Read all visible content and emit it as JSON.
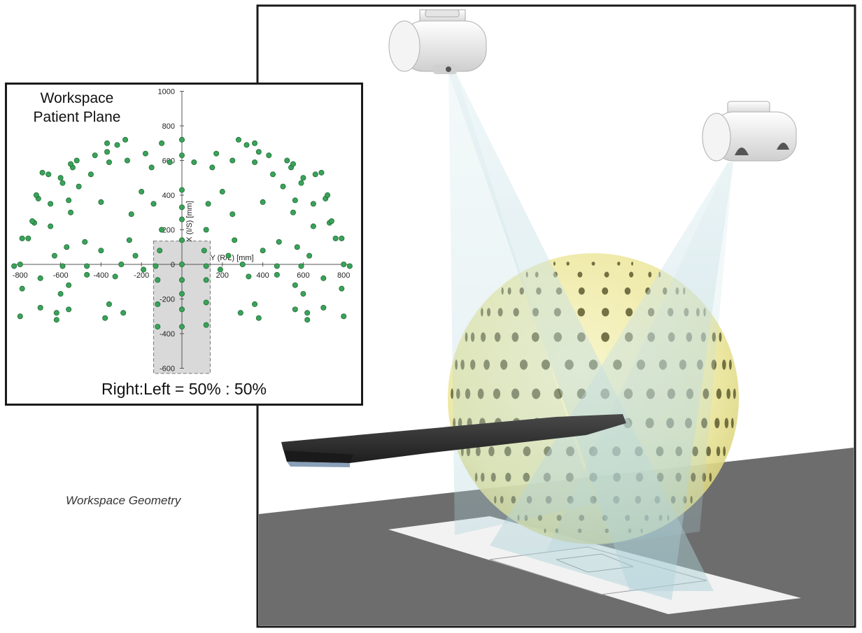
{
  "caption": "Workspace Geometry",
  "inset": {
    "title_line1": "Workspace",
    "title_line2": "Patient Plane",
    "ratio_text": "Right:Left = 50% : 50%"
  },
  "colors": {
    "point_fill": "#3aa35a",
    "point_stroke": "#1f6b34",
    "shaded_region": "#d9d9d9",
    "sphere_fill": "#f3f0b0",
    "floor": "#6b6b6b",
    "couch": "#2f2f2f",
    "beam": "#cfe6ea"
  },
  "chart_data": {
    "type": "scatter",
    "xlabel": "Y (R/L) [mm]",
    "ylabel": "X (I/S) [mm]",
    "xlim": [
      -800,
      800
    ],
    "ylim": [
      -600,
      1000
    ],
    "x_ticks": [
      -800,
      -600,
      -400,
      -200,
      0,
      200,
      400,
      600,
      800
    ],
    "y_ticks": [
      -600,
      -400,
      -200,
      0,
      200,
      400,
      600,
      800,
      1000
    ],
    "shaded_region": {
      "x": [
        -140,
        140
      ],
      "y": [
        -630,
        135
      ]
    },
    "points": [
      [
        0,
        720
      ],
      [
        0,
        630
      ],
      [
        0,
        430
      ],
      [
        0,
        330
      ],
      [
        0,
        260
      ],
      [
        0,
        140
      ],
      [
        0,
        0
      ],
      [
        0,
        -90
      ],
      [
        0,
        -170
      ],
      [
        0,
        -260
      ],
      [
        0,
        -360
      ],
      [
        -140,
        350
      ],
      [
        -130,
        -10
      ],
      [
        -120,
        -90
      ],
      [
        -120,
        -230
      ],
      [
        -120,
        -360
      ],
      [
        -100,
        700
      ],
      [
        -100,
        200
      ],
      [
        -110,
        80
      ],
      [
        130,
        350
      ],
      [
        120,
        -10
      ],
      [
        120,
        -90
      ],
      [
        120,
        -220
      ],
      [
        120,
        -350
      ],
      [
        120,
        200
      ],
      [
        110,
        80
      ],
      [
        -260,
        140
      ],
      [
        -250,
        290
      ],
      [
        -270,
        600
      ],
      [
        -280,
        720
      ],
      [
        -320,
        690
      ],
      [
        -360,
        590
      ],
      [
        -370,
        700
      ],
      [
        -290,
        -280
      ],
      [
        -300,
        0
      ],
      [
        -330,
        -70
      ],
      [
        -360,
        -230
      ],
      [
        -380,
        -310
      ],
      [
        -370,
        650
      ],
      [
        -400,
        360
      ],
      [
        -400,
        80
      ],
      [
        -430,
        630
      ],
      [
        -450,
        520
      ],
      [
        -470,
        -10
      ],
      [
        -470,
        -60
      ],
      [
        -480,
        130
      ],
      [
        -510,
        450
      ],
      [
        -520,
        600
      ],
      [
        -540,
        560
      ],
      [
        -550,
        580
      ],
      [
        -550,
        300
      ],
      [
        -560,
        -120
      ],
      [
        -560,
        -260
      ],
      [
        -560,
        370
      ],
      [
        -570,
        100
      ],
      [
        -590,
        470
      ],
      [
        -590,
        -10
      ],
      [
        -600,
        500
      ],
      [
        -600,
        -170
      ],
      [
        -620,
        -280
      ],
      [
        -620,
        -320
      ],
      [
        -630,
        50
      ],
      [
        -650,
        220
      ],
      [
        -650,
        350
      ],
      [
        -660,
        520
      ],
      [
        -690,
        530
      ],
      [
        -700,
        -80
      ],
      [
        -700,
        -250
      ],
      [
        -710,
        380
      ],
      [
        -720,
        400
      ],
      [
        -730,
        240
      ],
      [
        -740,
        250
      ],
      [
        -760,
        150
      ],
      [
        -790,
        150
      ],
      [
        -800,
        0
      ],
      [
        -830,
        -10
      ],
      [
        -800,
        -300
      ],
      [
        -790,
        -140
      ],
      [
        260,
        140
      ],
      [
        250,
        290
      ],
      [
        250,
        600
      ],
      [
        280,
        720
      ],
      [
        320,
        690
      ],
      [
        360,
        590
      ],
      [
        360,
        700
      ],
      [
        290,
        -280
      ],
      [
        300,
        0
      ],
      [
        330,
        -70
      ],
      [
        360,
        -230
      ],
      [
        380,
        -310
      ],
      [
        380,
        650
      ],
      [
        400,
        360
      ],
      [
        400,
        80
      ],
      [
        430,
        630
      ],
      [
        450,
        520
      ],
      [
        470,
        -10
      ],
      [
        470,
        -60
      ],
      [
        480,
        130
      ],
      [
        500,
        450
      ],
      [
        520,
        600
      ],
      [
        540,
        560
      ],
      [
        550,
        580
      ],
      [
        550,
        300
      ],
      [
        560,
        -120
      ],
      [
        560,
        -260
      ],
      [
        560,
        370
      ],
      [
        570,
        100
      ],
      [
        590,
        470
      ],
      [
        590,
        -10
      ],
      [
        600,
        500
      ],
      [
        600,
        -170
      ],
      [
        620,
        -280
      ],
      [
        620,
        -320
      ],
      [
        630,
        50
      ],
      [
        650,
        220
      ],
      [
        650,
        350
      ],
      [
        660,
        520
      ],
      [
        690,
        530
      ],
      [
        700,
        -80
      ],
      [
        700,
        -250
      ],
      [
        710,
        380
      ],
      [
        720,
        400
      ],
      [
        730,
        240
      ],
      [
        740,
        250
      ],
      [
        760,
        150
      ],
      [
        790,
        150
      ],
      [
        800,
        0
      ],
      [
        830,
        -10
      ],
      [
        800,
        -300
      ],
      [
        790,
        -140
      ],
      [
        -180,
        640
      ],
      [
        -150,
        560
      ],
      [
        170,
        640
      ],
      [
        150,
        560
      ],
      [
        -60,
        590
      ],
      [
        60,
        590
      ],
      [
        -200,
        420
      ],
      [
        200,
        420
      ],
      [
        -230,
        50
      ],
      [
        230,
        50
      ],
      [
        -190,
        -30
      ],
      [
        190,
        -30
      ]
    ]
  }
}
